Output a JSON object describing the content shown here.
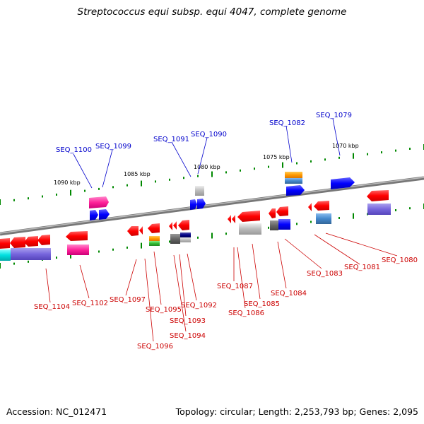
{
  "title": "Streptococcus equi subsp. equi 4047, complete genome",
  "footer": {
    "accession": "Accession: NC_012471",
    "topology": "Topology: circular; Length: 2,253,793 bp; Genes: 2,095"
  },
  "scale_labels": [
    "1090 kbp",
    "1085 kbp",
    "1080 kbp",
    "1075 kbp",
    "1070 kbp"
  ],
  "top_labels": [
    "SEQ_1100",
    "SEQ_1099",
    "SEQ_1091",
    "SEQ_1090",
    "SEQ_1082",
    "SEQ_1079"
  ],
  "bottom_labels": [
    "SEQ_1104",
    "SEQ_1102",
    "SEQ_1097",
    "SEQ_1096",
    "SEQ_1095",
    "SEQ_1094",
    "SEQ_1093",
    "SEQ_1092",
    "SEQ_1087",
    "SEQ_1086",
    "SEQ_1085",
    "SEQ_1084",
    "SEQ_1083",
    "SEQ_1081",
    "SEQ_1080"
  ],
  "colors": {
    "label_blue": "#0000cc",
    "label_red": "#cc0000",
    "gene_red": "#ff0000",
    "gene_blue": "#0000ff",
    "gene_magenta": "#ff33aa",
    "gene_violet": "#7766dd",
    "gene_gray": "#bbbbbb",
    "gene_orange": "#ff9900",
    "gene_cyan": "#00dddd",
    "scale_green": "#008800",
    "backbone": "#888888"
  }
}
